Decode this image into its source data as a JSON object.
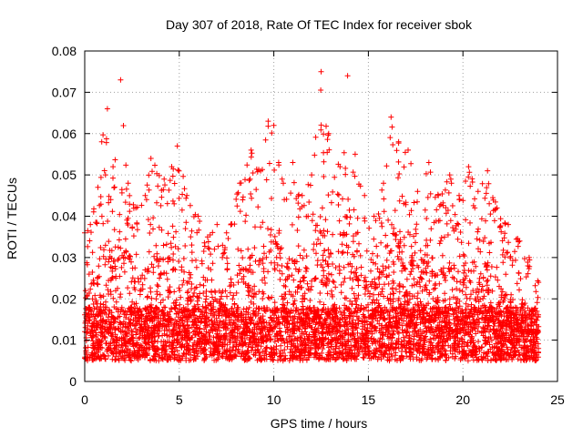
{
  "chart_data": {
    "type": "scatter",
    "title": "Day 307 of 2018, Rate Of TEC Index for receiver sbok",
    "xlabel": "GPS time / hours",
    "ylabel": "ROTI / TECUs",
    "xlim": [
      0,
      25
    ],
    "ylim": [
      0,
      0.08
    ],
    "xticks": [
      "0",
      "5",
      "10",
      "15",
      "20",
      "25"
    ],
    "yticks": [
      "0",
      "0.01",
      "0.02",
      "0.03",
      "0.04",
      "0.05",
      "0.06",
      "0.07",
      "0.08"
    ],
    "grid": true,
    "marker": "plus",
    "color": "#ff0000",
    "x_range_of_data": [
      0,
      24
    ],
    "baseline_band": [
      0.005,
      0.018
    ],
    "envelope": [
      {
        "x": 0.0,
        "y": 0.036
      },
      {
        "x": 0.3,
        "y": 0.038
      },
      {
        "x": 0.7,
        "y": 0.047
      },
      {
        "x": 0.9,
        "y": 0.058
      },
      {
        "x": 1.2,
        "y": 0.066
      },
      {
        "x": 1.5,
        "y": 0.052
      },
      {
        "x": 1.9,
        "y": 0.073
      },
      {
        "x": 2.3,
        "y": 0.048
      },
      {
        "x": 2.7,
        "y": 0.042
      },
      {
        "x": 3.2,
        "y": 0.045
      },
      {
        "x": 3.5,
        "y": 0.054
      },
      {
        "x": 4.2,
        "y": 0.049
      },
      {
        "x": 4.6,
        "y": 0.052
      },
      {
        "x": 4.9,
        "y": 0.057
      },
      {
        "x": 5.4,
        "y": 0.045
      },
      {
        "x": 6.0,
        "y": 0.04
      },
      {
        "x": 6.5,
        "y": 0.035
      },
      {
        "x": 7.0,
        "y": 0.038
      },
      {
        "x": 7.5,
        "y": 0.036
      },
      {
        "x": 8.2,
        "y": 0.048
      },
      {
        "x": 8.8,
        "y": 0.056
      },
      {
        "x": 9.3,
        "y": 0.051
      },
      {
        "x": 9.7,
        "y": 0.063
      },
      {
        "x": 10.0,
        "y": 0.062
      },
      {
        "x": 10.5,
        "y": 0.048
      },
      {
        "x": 11.0,
        "y": 0.053
      },
      {
        "x": 11.5,
        "y": 0.045
      },
      {
        "x": 12.0,
        "y": 0.05
      },
      {
        "x": 12.5,
        "y": 0.075
      },
      {
        "x": 12.9,
        "y": 0.06
      },
      {
        "x": 13.5,
        "y": 0.052
      },
      {
        "x": 13.9,
        "y": 0.074
      },
      {
        "x": 14.3,
        "y": 0.055
      },
      {
        "x": 14.8,
        "y": 0.045
      },
      {
        "x": 15.3,
        "y": 0.04
      },
      {
        "x": 15.8,
        "y": 0.048
      },
      {
        "x": 16.2,
        "y": 0.064
      },
      {
        "x": 16.6,
        "y": 0.058
      },
      {
        "x": 17.1,
        "y": 0.056
      },
      {
        "x": 17.6,
        "y": 0.046
      },
      {
        "x": 18.2,
        "y": 0.053
      },
      {
        "x": 18.7,
        "y": 0.045
      },
      {
        "x": 19.3,
        "y": 0.05
      },
      {
        "x": 19.8,
        "y": 0.045
      },
      {
        "x": 20.3,
        "y": 0.052
      },
      {
        "x": 20.8,
        "y": 0.046
      },
      {
        "x": 21.3,
        "y": 0.051
      },
      {
        "x": 21.8,
        "y": 0.042
      },
      {
        "x": 22.4,
        "y": 0.038
      },
      {
        "x": 23.0,
        "y": 0.034
      },
      {
        "x": 23.5,
        "y": 0.03
      },
      {
        "x": 24.0,
        "y": 0.024
      }
    ]
  }
}
